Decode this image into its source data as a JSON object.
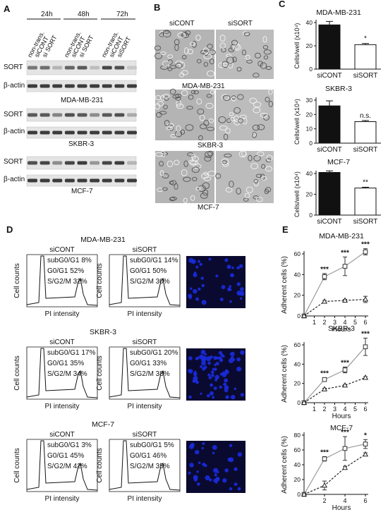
{
  "panels": {
    "a": "A",
    "b": "B",
    "c": "C",
    "d": "D",
    "e": "E"
  },
  "colors": {
    "bar_control": "#111111",
    "bar_si": "#ffffff",
    "line_si": "#999999",
    "line_ctrl": "#222222",
    "nucleus": "#1a2be0",
    "flow_bg": "#0a0a30"
  },
  "blot": {
    "timepoints": [
      "24h",
      "48h",
      "72h"
    ],
    "lanes": [
      "non-trans.",
      "siCONT",
      "si SORT",
      "non-trans.",
      "siCONT",
      "si SORT",
      "non-trans.",
      "siCONT",
      "siSORT"
    ],
    "proteins": [
      "SORT",
      "β-actin"
    ],
    "cell_lines": [
      "MDA-MB-231",
      "SKBR-3",
      "MCF-7"
    ],
    "sort_intensity": [
      [
        0.55,
        0.6,
        0.25,
        0.65,
        0.7,
        0.2,
        0.8,
        0.75,
        0.15
      ],
      [
        0.7,
        0.7,
        0.5,
        0.75,
        0.7,
        0.45,
        0.7,
        0.75,
        0.3
      ],
      [
        0.75,
        0.8,
        0.45,
        0.8,
        0.85,
        0.4,
        0.8,
        0.85,
        0.25
      ]
    ]
  },
  "micro": {
    "headers": [
      "siCONT",
      "siSORT"
    ],
    "cell_lines": [
      "MDA-MB-231",
      "SKBR-3",
      "MCF-7"
    ]
  },
  "chart_data": [
    {
      "type": "bar",
      "title": "MDA-MB-231",
      "categories": [
        "siCONT",
        "siSORT"
      ],
      "values": [
        38,
        21
      ],
      "errors": [
        3,
        1
      ],
      "ylabel": "Cells/well (x10⁴)",
      "ylim": [
        0,
        40
      ],
      "yticks": [
        0,
        20,
        40
      ],
      "significance": "*"
    },
    {
      "type": "bar",
      "title": "SKBR-3",
      "categories": [
        "siCONT",
        "siSORT"
      ],
      "values": [
        26,
        15
      ],
      "errors": [
        3.5,
        0.8
      ],
      "ylabel": "Cells/well (x10⁴)",
      "ylim": [
        0,
        30
      ],
      "yticks": [
        0,
        10,
        20,
        30
      ],
      "significance": "n.s."
    },
    {
      "type": "bar",
      "title": "MCF-7",
      "categories": [
        "siCONT",
        "siSORT"
      ],
      "values": [
        41,
        26
      ],
      "errors": [
        1.5,
        0.8
      ],
      "ylabel": "Cells/well (x10⁴)",
      "ylim": [
        0,
        40
      ],
      "yticks": [
        0,
        20,
        40
      ],
      "significance": "**"
    },
    {
      "type": "line",
      "title": "MDA-MB-231",
      "xlabel": "Hours",
      "ylabel": "Adherent cells (%)",
      "x": [
        0,
        2,
        4,
        6
      ],
      "xticks": [
        1,
        2,
        3,
        4,
        5,
        6
      ],
      "ylim": [
        0,
        60
      ],
      "yticks": [
        0,
        20,
        40,
        60
      ],
      "series": [
        {
          "values": [
            0,
            38,
            48,
            62
          ],
          "errors": [
            0,
            3,
            9,
            3
          ],
          "style": "solid"
        },
        {
          "values": [
            0,
            14,
            15,
            16
          ],
          "errors": [
            0,
            1,
            1,
            3
          ],
          "style": "dashed"
        }
      ],
      "annotations": [
        "***",
        "***",
        "***"
      ]
    },
    {
      "type": "line",
      "title": "SKBR-3",
      "xlabel": "Hours",
      "ylabel": "Adherent cells (%)",
      "x": [
        0,
        2,
        4,
        6
      ],
      "xticks": [
        1,
        2,
        3,
        4,
        5,
        6
      ],
      "ylim": [
        0,
        60
      ],
      "yticks": [
        0,
        20,
        40,
        60
      ],
      "series": [
        {
          "values": [
            0,
            24,
            34,
            58
          ],
          "errors": [
            0,
            2,
            3,
            9
          ],
          "style": "solid"
        },
        {
          "values": [
            0,
            14,
            18,
            26
          ],
          "errors": [
            0,
            1,
            1,
            1
          ],
          "style": "dashed"
        }
      ],
      "annotations": [
        "***",
        "***",
        "***"
      ]
    },
    {
      "type": "line",
      "title": "MCF-7",
      "xlabel": "Hours",
      "ylabel": "Adherent cells (%)",
      "x": [
        0,
        2,
        4,
        6
      ],
      "xticks": [
        2,
        4,
        6
      ],
      "ylim": [
        0,
        80
      ],
      "yticks": [
        0,
        20,
        40,
        60,
        80
      ],
      "series": [
        {
          "values": [
            0,
            48,
            62,
            68
          ],
          "errors": [
            0,
            3,
            16,
            6
          ],
          "style": "solid"
        },
        {
          "values": [
            0,
            12,
            36,
            54
          ],
          "errors": [
            0,
            6,
            2,
            2
          ],
          "style": "dashed"
        }
      ],
      "annotations": [
        "***",
        "***",
        "*"
      ]
    }
  ],
  "flow": {
    "rows": [
      {
        "title": "MDA-MB-231",
        "control": {
          "label": "siCONT",
          "lines": [
            "subG0/G1 8%",
            "G0/G1 52%",
            "S/G2/M 32%"
          ]
        },
        "si": {
          "label": "siSORT",
          "lines": [
            "subG0/G1 14%",
            "G0/G1 50%",
            "S/G2/M 30%"
          ]
        }
      },
      {
        "title": "SKBR-3",
        "control": {
          "label": "siCONT",
          "lines": [
            "subG0/G1 17%",
            "G0/G1 35%",
            "S/G2/M 34%"
          ]
        },
        "si": {
          "label": "siSORT",
          "lines": [
            "subG0/G1 20%",
            "G0/G1 33%",
            "S/G2/M 38%"
          ]
        }
      },
      {
        "title": "MCF-7",
        "control": {
          "label": "siCONT",
          "lines": [
            "subG0/G1 3%",
            "G0/G1 45%",
            "S/G2/M 42%"
          ]
        },
        "si": {
          "label": "siSORT",
          "lines": [
            "subG0/G1 5%",
            "G0/G1 46%",
            "S/G2/M 35%"
          ]
        }
      }
    ],
    "ylabel": "Cell counts",
    "xlabel": "PI intensity"
  }
}
